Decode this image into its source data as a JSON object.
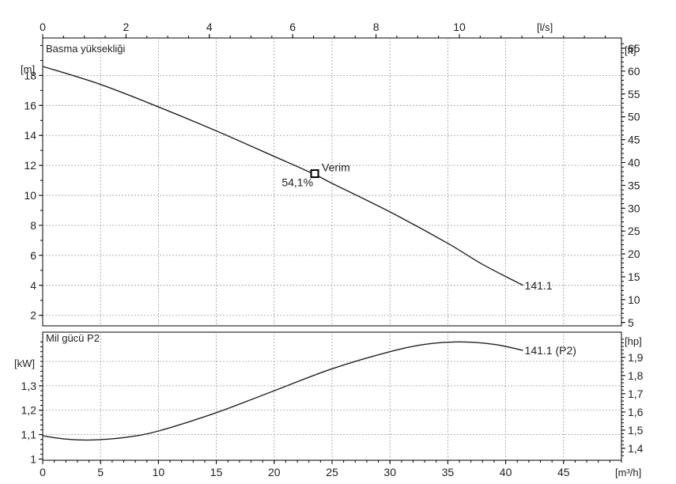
{
  "chart_data": [
    {
      "type": "line",
      "title": "Basma yüksekliği",
      "x_top_axis": {
        "unit": "[l/s]",
        "ticks": [
          0,
          2,
          4,
          6,
          8,
          10
        ],
        "range": [
          0,
          13.89
        ]
      },
      "x_bottom_axis": {
        "unit": "[m³/h]",
        "ticks": [
          0,
          5,
          10,
          15,
          20,
          25,
          30,
          35,
          40,
          45
        ],
        "range": [
          0,
          50
        ]
      },
      "y_left_axis": {
        "unit": "[m]",
        "ticks": [
          2,
          4,
          6,
          8,
          10,
          12,
          14,
          16,
          18
        ],
        "range": [
          1.3,
          20.5
        ]
      },
      "y_right_axis": {
        "unit": "[ft]",
        "ticks": [
          5,
          10,
          15,
          20,
          25,
          30,
          35,
          40,
          45,
          50,
          55,
          60,
          65
        ]
      },
      "grid": true,
      "series": [
        {
          "name": "141.1",
          "x": [
            0,
            5,
            10,
            15,
            20,
            23.5,
            25,
            30,
            35,
            38,
            41.5
          ],
          "y": [
            18.6,
            17.4,
            15.9,
            14.3,
            12.6,
            11.4,
            10.8,
            8.9,
            6.8,
            5.4,
            4.0
          ]
        }
      ],
      "annotations": [
        {
          "label": "Verim",
          "value_label": "54,1%",
          "x": 23.5,
          "y": 11.45
        }
      ]
    },
    {
      "type": "line",
      "title": "Mil gücü P2",
      "x_bottom_axis": {
        "unit": "[m³/h]",
        "ticks": [
          0,
          5,
          10,
          15,
          20,
          25,
          30,
          35,
          40,
          45
        ],
        "range": [
          0,
          50
        ]
      },
      "y_left_axis": {
        "unit": "[kW]",
        "ticks": [
          "1",
          "1,1",
          "1,2",
          "1,3"
        ],
        "tick_values": [
          1.0,
          1.1,
          1.2,
          1.3
        ],
        "range": [
          0.995,
          1.52
        ]
      },
      "y_right_axis": {
        "unit": "[hp]",
        "ticks": [
          "1,4",
          "1,5",
          "1,6",
          "1,7",
          "1,8",
          "1,9"
        ],
        "tick_values": [
          1.4,
          1.5,
          1.6,
          1.7,
          1.8,
          1.9
        ]
      },
      "grid": true,
      "series": [
        {
          "name": "141.1 (P2)",
          "x": [
            0,
            2,
            4,
            7,
            10,
            15,
            20,
            25,
            30,
            33,
            36,
            39,
            41.5
          ],
          "y": [
            1.095,
            1.082,
            1.078,
            1.088,
            1.115,
            1.19,
            1.28,
            1.37,
            1.44,
            1.47,
            1.48,
            1.47,
            1.445
          ]
        }
      ]
    }
  ]
}
